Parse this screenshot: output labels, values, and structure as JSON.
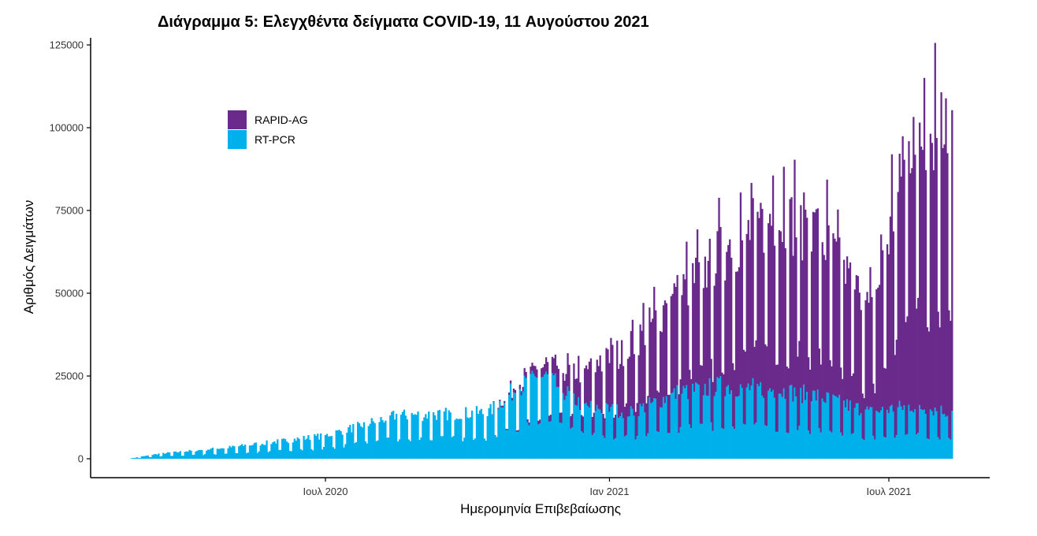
{
  "chart_data": {
    "type": "bar",
    "stacked": true,
    "title": "Διάγραμμα 5: Ελεγχθέντα δείγματα COVID-19, 11 Αυγούστου 2021",
    "xlabel": "Ημερομηνία Επιβεβαίωσης",
    "ylabel": "Αριθμός Δειγμάτων",
    "xlim": [
      "2020-02-26",
      "2021-08-11"
    ],
    "ylim": [
      0,
      125000
    ],
    "y_ticks": [
      0,
      25000,
      50000,
      75000,
      100000,
      125000
    ],
    "x_ticks": [
      {
        "date": "2020-07-01",
        "label": "Ιουλ 2020"
      },
      {
        "date": "2021-01-01",
        "label": "Ιαν 2021"
      },
      {
        "date": "2021-07-01",
        "label": "Ιουλ 2021"
      }
    ],
    "grid": false,
    "legend_position": "top-left",
    "colors": {
      "RAPID-AG": "#6a2a8c",
      "RT-PCR": "#00b0ea"
    },
    "series": [
      {
        "name": "RAPID-AG",
        "values_note": "approximate daily values"
      },
      {
        "name": "RT-PCR",
        "values_note": "approximate daily values"
      }
    ],
    "keypoints": [
      {
        "date": "2020-02-26",
        "rt_pcr": 100,
        "rapid_ag": 0
      },
      {
        "date": "2020-03-15",
        "rt_pcr": 1500,
        "rapid_ag": 0
      },
      {
        "date": "2020-05-01",
        "rt_pcr": 3500,
        "rapid_ag": 0
      },
      {
        "date": "2020-07-01",
        "rt_pcr": 7000,
        "rapid_ag": 0
      },
      {
        "date": "2020-08-15",
        "rt_pcr": 13000,
        "rapid_ag": 0
      },
      {
        "date": "2020-10-15",
        "rt_pcr": 14000,
        "rapid_ag": 0
      },
      {
        "date": "2020-11-01",
        "rt_pcr": 21000,
        "rapid_ag": 1000
      },
      {
        "date": "2020-11-20",
        "rt_pcr": 25000,
        "rapid_ag": 3000
      },
      {
        "date": "2020-12-15",
        "rt_pcr": 16000,
        "rapid_ag": 10000
      },
      {
        "date": "2021-01-15",
        "rt_pcr": 14000,
        "rapid_ag": 20000
      },
      {
        "date": "2021-02-15",
        "rt_pcr": 20000,
        "rapid_ag": 30000
      },
      {
        "date": "2021-03-15",
        "rt_pcr": 22000,
        "rapid_ag": 40000
      },
      {
        "date": "2021-04-15",
        "rt_pcr": 21000,
        "rapid_ag": 52000
      },
      {
        "date": "2021-05-15",
        "rt_pcr": 19000,
        "rapid_ag": 50000
      },
      {
        "date": "2021-06-20",
        "rt_pcr": 14000,
        "rapid_ag": 30000
      },
      {
        "date": "2021-07-15",
        "rt_pcr": 16000,
        "rapid_ag": 80000
      },
      {
        "date": "2021-08-11",
        "rt_pcr": 14000,
        "rapid_ag": 88000
      }
    ]
  }
}
